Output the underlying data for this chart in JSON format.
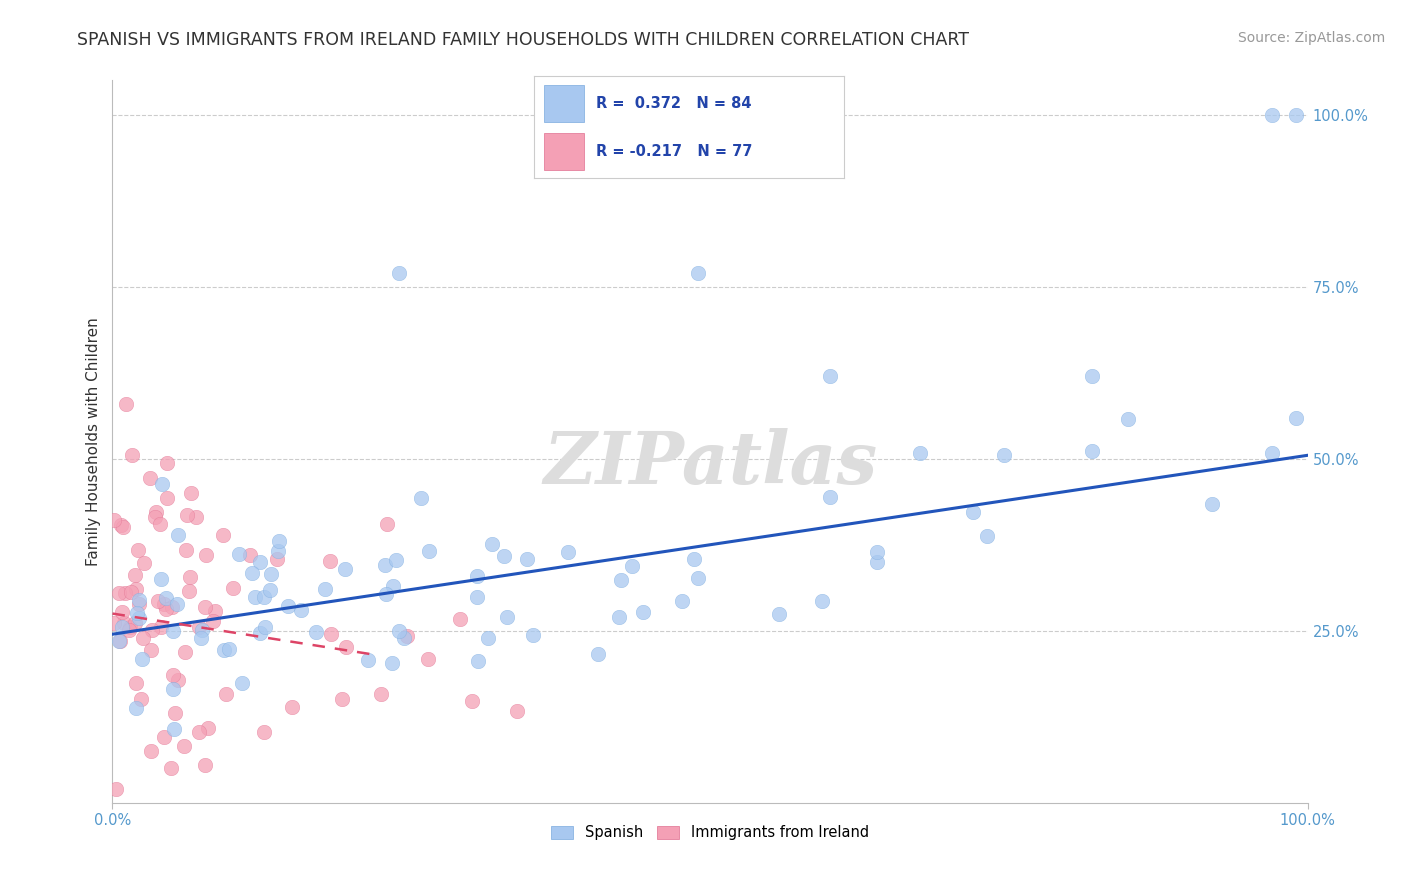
{
  "title": "SPANISH VS IMMIGRANTS FROM IRELAND FAMILY HOUSEHOLDS WITH CHILDREN CORRELATION CHART",
  "source": "Source: ZipAtlas.com",
  "ylabel": "Family Households with Children",
  "watermark": "ZIPatlas",
  "xlim": [
    0,
    1.0
  ],
  "ylim": [
    0,
    1.05
  ],
  "right_yticks": [
    0.25,
    0.5,
    0.75,
    1.0
  ],
  "right_ytick_labels": [
    "25.0%",
    "50.0%",
    "75.0%",
    "100.0%"
  ],
  "series1_color": "#A8C8F0",
  "series2_color": "#F4A0B5",
  "series1_edge": "#7AAADE",
  "series2_edge": "#E07090",
  "series1_label": "Spanish",
  "series2_label": "Immigrants from Ireland",
  "R1": 0.372,
  "N1": 84,
  "R2": -0.217,
  "N2": 77,
  "trend1_color": "#2255BB",
  "trend2_color": "#DD4466",
  "trend1_y0": 0.245,
  "trend1_y1": 0.505,
  "trend2_y0": 0.275,
  "trend2_y1": 0.215,
  "trend2_xmax": 0.22,
  "background_color": "#ffffff",
  "title_fontsize": 12.5,
  "axis_label_fontsize": 11,
  "tick_fontsize": 10.5,
  "source_fontsize": 10,
  "watermark_fontsize": 52,
  "watermark_color": "#DDDDDD",
  "grid_color": "#CCCCCC",
  "legend_R1_text": "R =  0.372   N = 84",
  "legend_R2_text": "R = -0.217   N = 77"
}
